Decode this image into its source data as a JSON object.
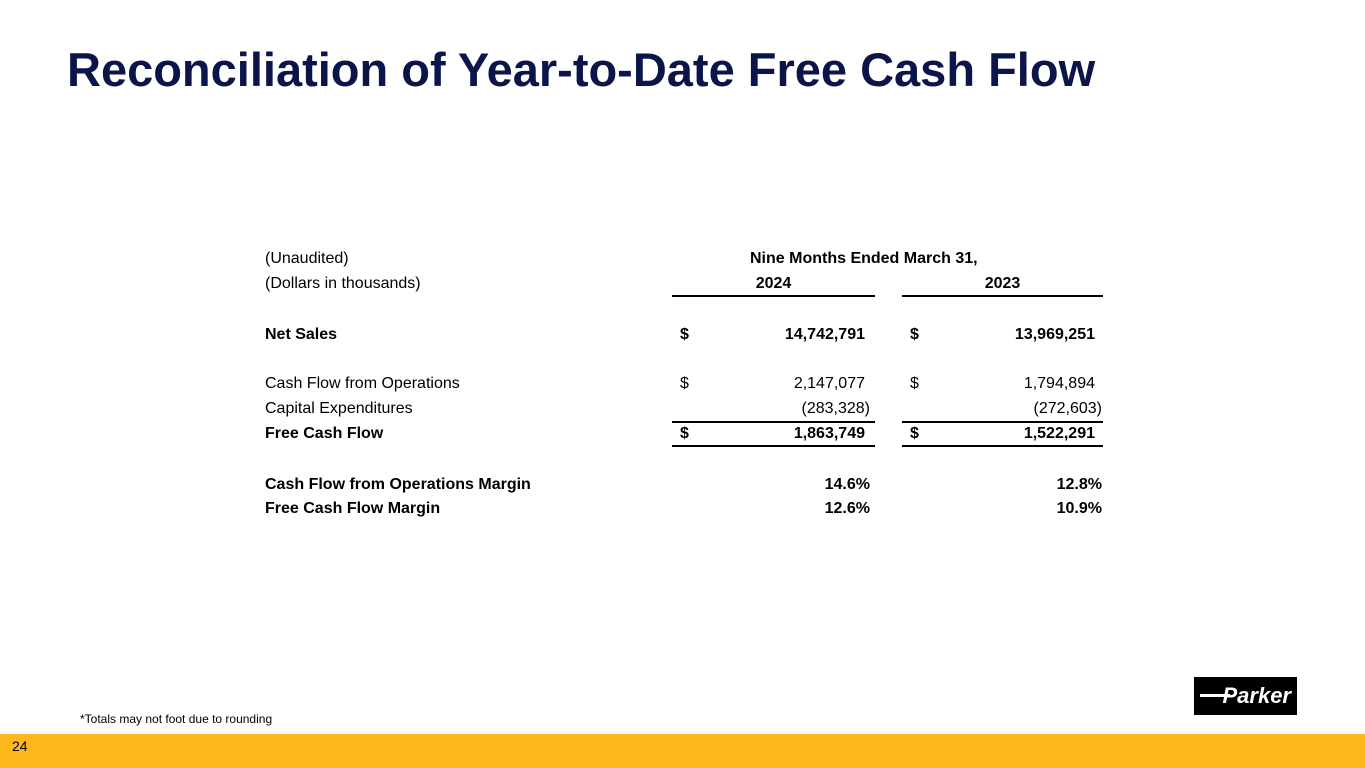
{
  "title": "Reconciliation of Year-to-Date Free Cash Flow",
  "header": {
    "unaudited": "(Unaudited)",
    "units": "(Dollars in thousands)",
    "period": "Nine Months Ended March 31,",
    "col1": "2024",
    "col2": "2023"
  },
  "rows": [
    {
      "label": "Net Sales",
      "cur1": "$",
      "v1": "14,742,791",
      "cur2": "$",
      "v2": "13,969,251"
    },
    {
      "label": "Cash Flow from Operations",
      "cur1": "$",
      "v1": "2,147,077",
      "cur2": "$",
      "v2": "1,794,894"
    },
    {
      "label": "Capital Expenditures",
      "v1": "(283,328)",
      "v2": "(272,603)"
    },
    {
      "label": "Free Cash Flow",
      "cur1": "$",
      "v1": "1,863,749",
      "cur2": "$",
      "v2": "1,522,291"
    },
    {
      "label": "Cash Flow from Operations Margin",
      "v1": "14.6%",
      "v2": "12.8%"
    },
    {
      "label": "Free Cash Flow Margin",
      "v1": "12.6%",
      "v2": "10.9%"
    }
  ],
  "footnote": "*Totals may not foot due to rounding",
  "page_number": "24",
  "logo_text": "Parker"
}
